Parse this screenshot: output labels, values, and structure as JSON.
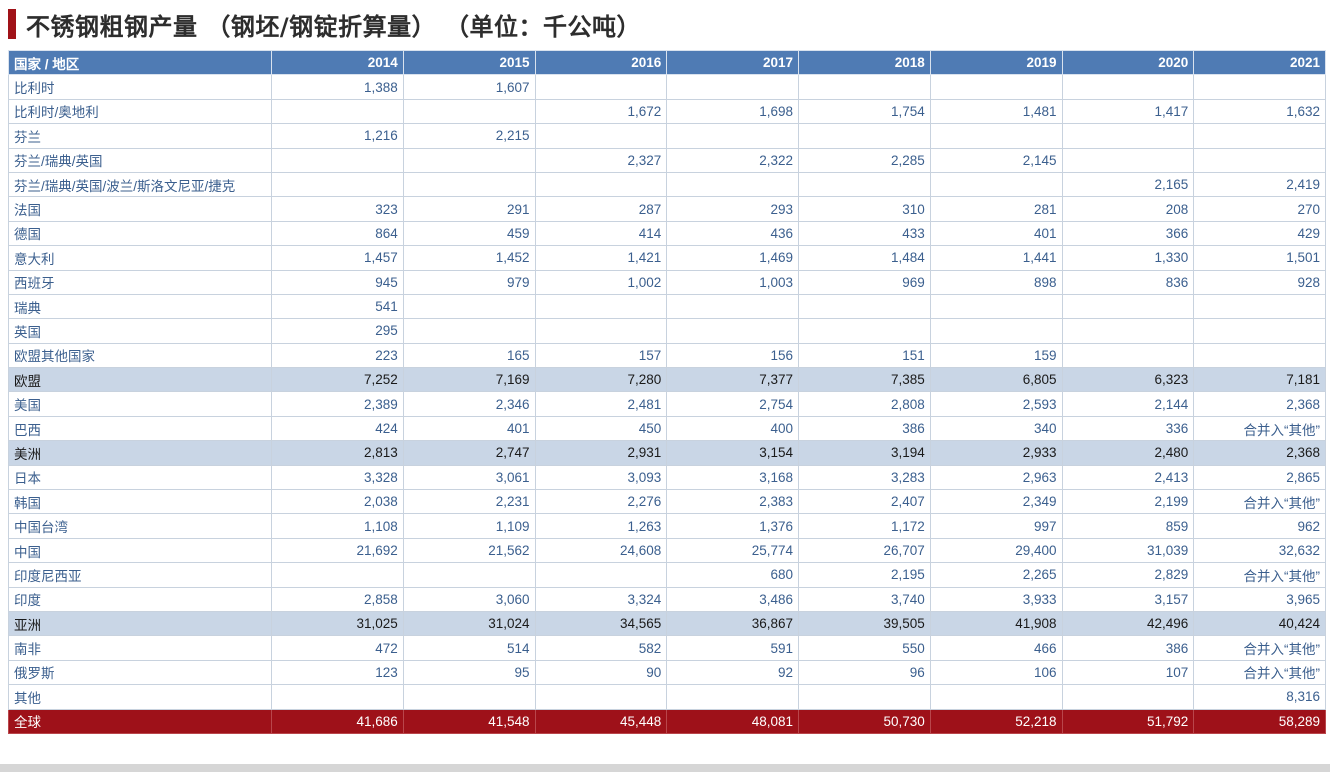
{
  "title": "不锈钢粗钢产量 （钢坯/钢锭折算量） （单位：千公吨）",
  "colors": {
    "accent": "#a01218",
    "header_bg": "#4f7bb4",
    "subtotal_bg": "#c9d6e6",
    "total_bg": "#9e1119",
    "text": "#3b5f8e"
  },
  "table": {
    "columns": [
      "国家 / 地区",
      "2014",
      "2015",
      "2016",
      "2017",
      "2018",
      "2019",
      "2020",
      "2021"
    ],
    "rows": [
      {
        "type": "row",
        "cells": [
          "比利时",
          "1,388",
          "1,607",
          "",
          "",
          "",
          "",
          "",
          ""
        ]
      },
      {
        "type": "row",
        "cells": [
          "比利时/奥地利",
          "",
          "",
          "1,672",
          "1,698",
          "1,754",
          "1,481",
          "1,417",
          "1,632"
        ]
      },
      {
        "type": "row",
        "cells": [
          "芬兰",
          "1,216",
          "2,215",
          "",
          "",
          "",
          "",
          "",
          ""
        ]
      },
      {
        "type": "row",
        "cells": [
          "芬兰/瑞典/英国",
          "",
          "",
          "2,327",
          "2,322",
          "2,285",
          "2,145",
          "",
          ""
        ]
      },
      {
        "type": "row",
        "cells": [
          "芬兰/瑞典/英国/波兰/斯洛文尼亚/捷克",
          "",
          "",
          "",
          "",
          "",
          "",
          "2,165",
          "2,419"
        ]
      },
      {
        "type": "row",
        "cells": [
          "法国",
          "323",
          "291",
          "287",
          "293",
          "310",
          "281",
          "208",
          "270"
        ]
      },
      {
        "type": "row",
        "cells": [
          "德国",
          "864",
          "459",
          "414",
          "436",
          "433",
          "401",
          "366",
          "429"
        ]
      },
      {
        "type": "row",
        "cells": [
          "意大利",
          "1,457",
          "1,452",
          "1,421",
          "1,469",
          "1,484",
          "1,441",
          "1,330",
          "1,501"
        ]
      },
      {
        "type": "row",
        "cells": [
          "西班牙",
          "945",
          "979",
          "1,002",
          "1,003",
          "969",
          "898",
          "836",
          "928"
        ]
      },
      {
        "type": "row",
        "cells": [
          "瑞典",
          "541",
          "",
          "",
          "",
          "",
          "",
          "",
          ""
        ]
      },
      {
        "type": "row",
        "cells": [
          "英国",
          "295",
          "",
          "",
          "",
          "",
          "",
          "",
          ""
        ]
      },
      {
        "type": "row",
        "cells": [
          "欧盟其他国家",
          "223",
          "165",
          "157",
          "156",
          "151",
          "159",
          "",
          ""
        ]
      },
      {
        "type": "sub",
        "cells": [
          "欧盟",
          "7,252",
          "7,169",
          "7,280",
          "7,377",
          "7,385",
          "6,805",
          "6,323",
          "7,181"
        ]
      },
      {
        "type": "row",
        "cells": [
          "美国",
          "2,389",
          "2,346",
          "2,481",
          "2,754",
          "2,808",
          "2,593",
          "2,144",
          "2,368"
        ]
      },
      {
        "type": "row",
        "cells": [
          "巴西",
          "424",
          "401",
          "450",
          "400",
          "386",
          "340",
          "336",
          "合并入“其他”"
        ]
      },
      {
        "type": "sub",
        "cells": [
          "美洲",
          "2,813",
          "2,747",
          "2,931",
          "3,154",
          "3,194",
          "2,933",
          "2,480",
          "2,368"
        ]
      },
      {
        "type": "row",
        "cells": [
          "日本",
          "3,328",
          "3,061",
          "3,093",
          "3,168",
          "3,283",
          "2,963",
          "2,413",
          "2,865"
        ]
      },
      {
        "type": "row",
        "cells": [
          "韩国",
          "2,038",
          "2,231",
          "2,276",
          "2,383",
          "2,407",
          "2,349",
          "2,199",
          "合并入“其他”"
        ]
      },
      {
        "type": "row",
        "cells": [
          "中国台湾",
          "1,108",
          "1,109",
          "1,263",
          "1,376",
          "1,172",
          "997",
          "859",
          "962"
        ]
      },
      {
        "type": "row",
        "cells": [
          "中国",
          "21,692",
          "21,562",
          "24,608",
          "25,774",
          "26,707",
          "29,400",
          "31,039",
          "32,632"
        ]
      },
      {
        "type": "row",
        "cells": [
          "印度尼西亚",
          "",
          "",
          "",
          "680",
          "2,195",
          "2,265",
          "2,829",
          "合并入“其他”"
        ]
      },
      {
        "type": "row",
        "cells": [
          "印度",
          "2,858",
          "3,060",
          "3,324",
          "3,486",
          "3,740",
          "3,933",
          "3,157",
          "3,965"
        ]
      },
      {
        "type": "sub",
        "cells": [
          "亚洲",
          "31,025",
          "31,024",
          "34,565",
          "36,867",
          "39,505",
          "41,908",
          "42,496",
          "40,424"
        ]
      },
      {
        "type": "row",
        "cells": [
          "南非",
          "472",
          "514",
          "582",
          "591",
          "550",
          "466",
          "386",
          "合并入“其他”"
        ]
      },
      {
        "type": "row",
        "cells": [
          "俄罗斯",
          "123",
          "95",
          "90",
          "92",
          "96",
          "106",
          "107",
          "合并入“其他”"
        ]
      },
      {
        "type": "row",
        "cells": [
          "其他",
          "",
          "",
          "",
          "",
          "",
          "",
          "",
          "8,316"
        ]
      },
      {
        "type": "total",
        "cells": [
          "全球",
          "41,686",
          "41,548",
          "45,448",
          "48,081",
          "50,730",
          "52,218",
          "51,792",
          "58,289"
        ]
      }
    ]
  }
}
